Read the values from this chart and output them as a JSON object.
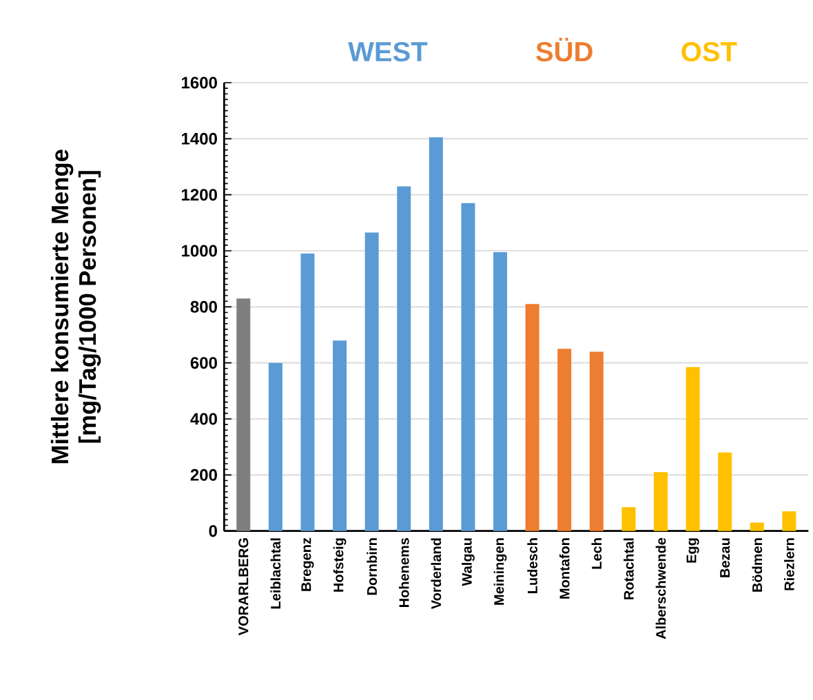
{
  "chart_data": {
    "type": "bar",
    "ylabel": "Mittlere konsumierte Menge\n[mg/Tag/1000 Personen]",
    "categories": [
      "VORARLBERG",
      "Leiblachtal",
      "Bregenz",
      "Hofsteig",
      "Dornbirn",
      "Hohenems",
      "Vorderland",
      "Walgau",
      "Meiningen",
      "Ludesch",
      "Montafon",
      "Lech",
      "Rotachtal",
      "Alberschwende",
      "Egg",
      "Bezau",
      "Bödmen",
      "Riezlern"
    ],
    "values": [
      830,
      600,
      990,
      680,
      1065,
      1230,
      1405,
      1170,
      995,
      810,
      650,
      640,
      85,
      210,
      585,
      280,
      30,
      70
    ],
    "colors": [
      "#7f7f7f",
      "#5b9bd5",
      "#5b9bd5",
      "#5b9bd5",
      "#5b9bd5",
      "#5b9bd5",
      "#5b9bd5",
      "#5b9bd5",
      "#5b9bd5",
      "#ed7d31",
      "#ed7d31",
      "#ed7d31",
      "#ffc000",
      "#ffc000",
      "#ffc000",
      "#ffc000",
      "#ffc000",
      "#ffc000"
    ],
    "annotations": [
      "WEST",
      "SÜD",
      "OST"
    ],
    "ylim": [
      0,
      1600
    ],
    "yticks": [
      0,
      200,
      400,
      600,
      800,
      1000,
      1200,
      1400,
      1600
    ],
    "grid": "y"
  }
}
